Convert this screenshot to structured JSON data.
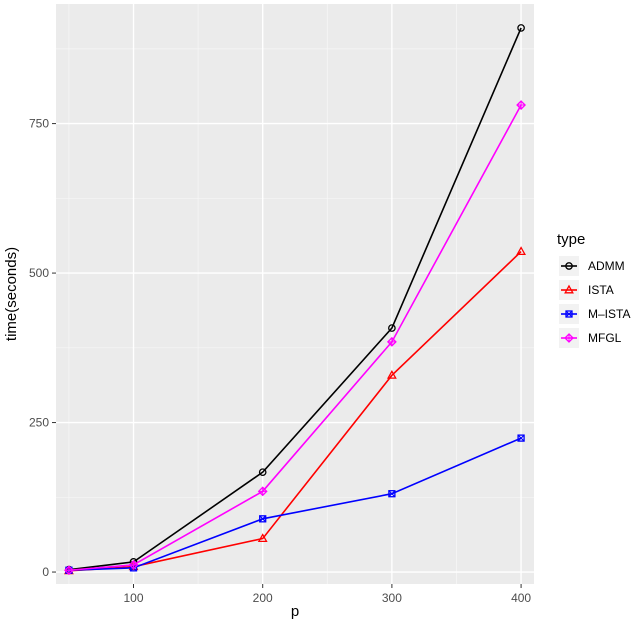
{
  "chart_data": {
    "type": "line",
    "xlabel": "p",
    "ylabel": "time(seconds)",
    "xlim": [
      40,
      410
    ],
    "ylim": [
      -20,
      950
    ],
    "x_ticks": [
      100,
      200,
      300,
      400
    ],
    "y_ticks": [
      0,
      250,
      500,
      750
    ],
    "grid": true,
    "legend": {
      "title": "type",
      "placement": "right"
    },
    "x": [
      50,
      100,
      200,
      300,
      400
    ],
    "series": [
      {
        "name": "ADMM",
        "color": "#000000",
        "marker": "circle",
        "values": [
          4,
          17,
          167,
          408,
          910
        ]
      },
      {
        "name": "ISTA",
        "color": "#ff0000",
        "marker": "triangle",
        "values": [
          2,
          9,
          56,
          329,
          536
        ]
      },
      {
        "name": "M–ISTA",
        "color": "#0000ff",
        "marker": "square-x",
        "values": [
          3,
          7,
          89,
          131,
          224
        ]
      },
      {
        "name": "MFGL",
        "color": "#ff00ff",
        "marker": "diamond",
        "values": [
          3,
          12,
          135,
          385,
          781
        ]
      }
    ]
  }
}
